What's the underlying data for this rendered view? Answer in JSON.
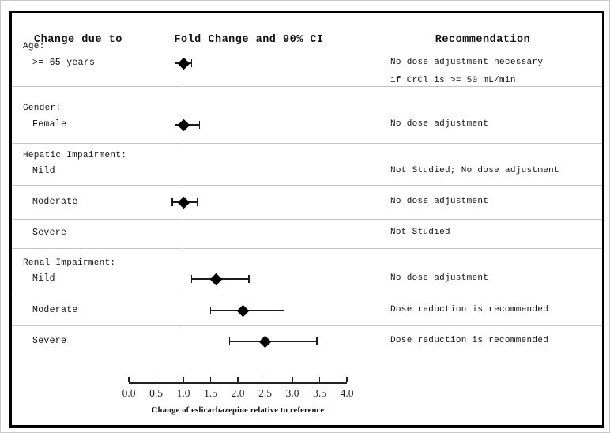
{
  "figure": {
    "column_headers": {
      "change_due_to": "Change due to",
      "fold_change": "Fold Change and 90% CI",
      "recommendation": "Recommendation"
    }
  },
  "chart_data": {
    "type": "scatter",
    "subtype": "forest-plot",
    "title": "Fold Change and 90% CI",
    "xlabel": "Change of eslicarbazepine relative to reference",
    "xlim": [
      0.0,
      4.0
    ],
    "x_ticks": [
      0.0,
      0.5,
      1.0,
      1.5,
      2.0,
      2.5,
      3.0,
      3.5,
      4.0
    ],
    "x_tick_labels": [
      "0.0",
      "0.5",
      "1.0",
      "1.5",
      "2.0",
      "2.5",
      "3.0",
      "3.5",
      "4.0"
    ],
    "reference_line_x": 1.0,
    "grid": false,
    "legend": "none",
    "rows": [
      {
        "section": "Age:",
        "label": ">= 65 years",
        "fold_change": 1.0,
        "ci90_low": 0.85,
        "ci90_high": 1.15,
        "recommendation": [
          "No dose adjustment necessary",
          "if CrCl is >= 50 mL/min"
        ]
      },
      {
        "section": "Gender:",
        "label": "Female",
        "fold_change": 1.0,
        "ci90_low": 0.85,
        "ci90_high": 1.3,
        "recommendation": [
          "No dose adjustment"
        ]
      },
      {
        "section": "Hepatic Impairment:",
        "label": "Mild",
        "fold_change": null,
        "ci90_low": null,
        "ci90_high": null,
        "recommendation": [
          "Not Studied; No dose adjustment"
        ]
      },
      {
        "section": null,
        "label": "Moderate",
        "fold_change": 1.0,
        "ci90_low": 0.8,
        "ci90_high": 1.25,
        "recommendation": [
          "No dose adjustment"
        ]
      },
      {
        "section": null,
        "label": "Severe",
        "fold_change": null,
        "ci90_low": null,
        "ci90_high": null,
        "recommendation": [
          "Not Studied"
        ]
      },
      {
        "section": "Renal Impairment:",
        "label": "Mild",
        "fold_change": 1.6,
        "ci90_low": 1.15,
        "ci90_high": 2.2,
        "recommendation": [
          "No dose adjustment"
        ]
      },
      {
        "section": null,
        "label": "Moderate",
        "fold_change": 2.1,
        "ci90_low": 1.5,
        "ci90_high": 2.85,
        "recommendation": [
          "Dose reduction is recommended"
        ]
      },
      {
        "section": null,
        "label": "Severe",
        "fold_change": 2.5,
        "ci90_low": 1.85,
        "ci90_high": 3.45,
        "recommendation": [
          "Dose reduction is recommended"
        ]
      }
    ],
    "colors": {
      "marker": "#000000",
      "ci_line": "#1c1c1c",
      "reference_line": "#b4b4b4",
      "divider": "#c6c6c6",
      "frame": "#000000"
    }
  }
}
